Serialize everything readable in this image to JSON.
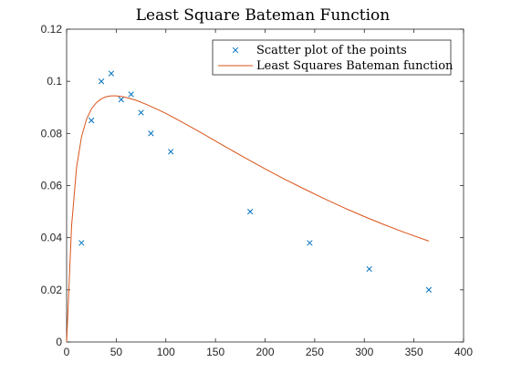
{
  "chart_data": {
    "type": "scatter",
    "title": "Least Square Bateman Function",
    "xlabel": "",
    "ylabel": "",
    "xlim": [
      0,
      400
    ],
    "ylim": [
      0,
      0.12
    ],
    "x_ticks": [
      0,
      50,
      100,
      150,
      200,
      250,
      300,
      350,
      400
    ],
    "x_tick_labels": [
      "0",
      "50",
      "100",
      "150",
      "200",
      "250",
      "300",
      "350",
      "400"
    ],
    "y_ticks": [
      0,
      0.02,
      0.04,
      0.06,
      0.08,
      0.1,
      0.12
    ],
    "y_tick_labels": [
      "0",
      "0.02",
      "0.04",
      "0.06",
      "0.08",
      "0.1",
      "0.12"
    ],
    "grid": false,
    "legend_position": "top-right",
    "series": [
      {
        "name": "Scatter plot of the points",
        "kind": "scatter",
        "marker": "x",
        "color": "#0072BD",
        "x": [
          15,
          25,
          35,
          45,
          55,
          65,
          75,
          85,
          105,
          185,
          245,
          305,
          365
        ],
        "y": [
          0.038,
          0.085,
          0.1,
          0.103,
          0.093,
          0.095,
          0.088,
          0.08,
          0.073,
          0.05,
          0.038,
          0.028,
          0.02
        ]
      },
      {
        "name": "Least Squares Bateman function",
        "kind": "line",
        "color": "#D95319",
        "x": [
          0,
          5,
          10,
          15,
          20,
          25,
          30,
          35,
          40,
          45,
          50,
          55,
          60,
          70,
          80,
          90,
          100,
          120,
          140,
          160,
          180,
          200,
          220,
          240,
          260,
          280,
          300,
          320,
          340,
          365
        ],
        "y": [
          0.0,
          0.0445,
          0.0669,
          0.0787,
          0.0854,
          0.0894,
          0.0918,
          0.0933,
          0.0941,
          0.0944,
          0.0944,
          0.0942,
          0.0938,
          0.0927,
          0.0912,
          0.0895,
          0.0877,
          0.0836,
          0.0793,
          0.0749,
          0.0706,
          0.0664,
          0.0624,
          0.0586,
          0.0549,
          0.0514,
          0.0481,
          0.045,
          0.0421,
          0.0387
        ]
      }
    ]
  }
}
